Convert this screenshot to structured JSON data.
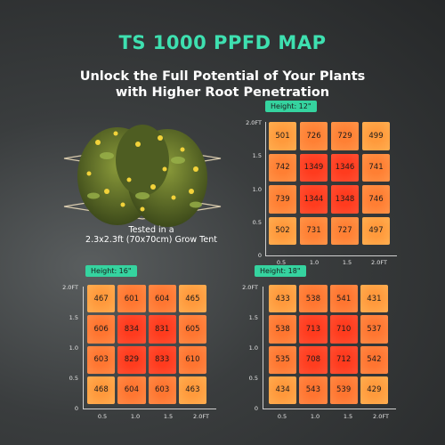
{
  "header": {
    "title": "TS 1000 PPFD MAP",
    "subtitle_line1": "Unlock the Full Potential of Your Plants",
    "subtitle_line2": "with Higher Root Penetration"
  },
  "caption": {
    "line1": "Tested in a",
    "line2": "2.3x2.3ft (70x70cm) Grow Tent"
  },
  "axis": {
    "y_ticks": [
      "2.0FT",
      "1.5",
      "1.0",
      "0.5",
      "0"
    ],
    "x_ticks": [
      "0.5",
      "1.0",
      "1.5",
      "2.0FT"
    ]
  },
  "colors": {
    "accent": "#3ee0b0",
    "badge": "#35d39f",
    "cell_low": "#ff9a3c",
    "cell_high": "#ff3b1e"
  },
  "maps": [
    {
      "id": "h12",
      "label": "Height: 12\"",
      "values": [
        [
          501,
          726,
          729,
          499
        ],
        [
          742,
          1349,
          1346,
          741
        ],
        [
          739,
          1344,
          1348,
          746
        ],
        [
          502,
          731,
          727,
          497
        ]
      ]
    },
    {
      "id": "h16",
      "label": "Height: 16\"",
      "values": [
        [
          467,
          601,
          604,
          465
        ],
        [
          606,
          834,
          831,
          605
        ],
        [
          603,
          829,
          833,
          610
        ],
        [
          468,
          604,
          603,
          463
        ]
      ]
    },
    {
      "id": "h18",
      "label": "Height: 18\"",
      "values": [
        [
          433,
          538,
          541,
          431
        ],
        [
          538,
          713,
          710,
          537
        ],
        [
          535,
          708,
          712,
          542
        ],
        [
          434,
          543,
          539,
          429
        ]
      ]
    }
  ]
}
